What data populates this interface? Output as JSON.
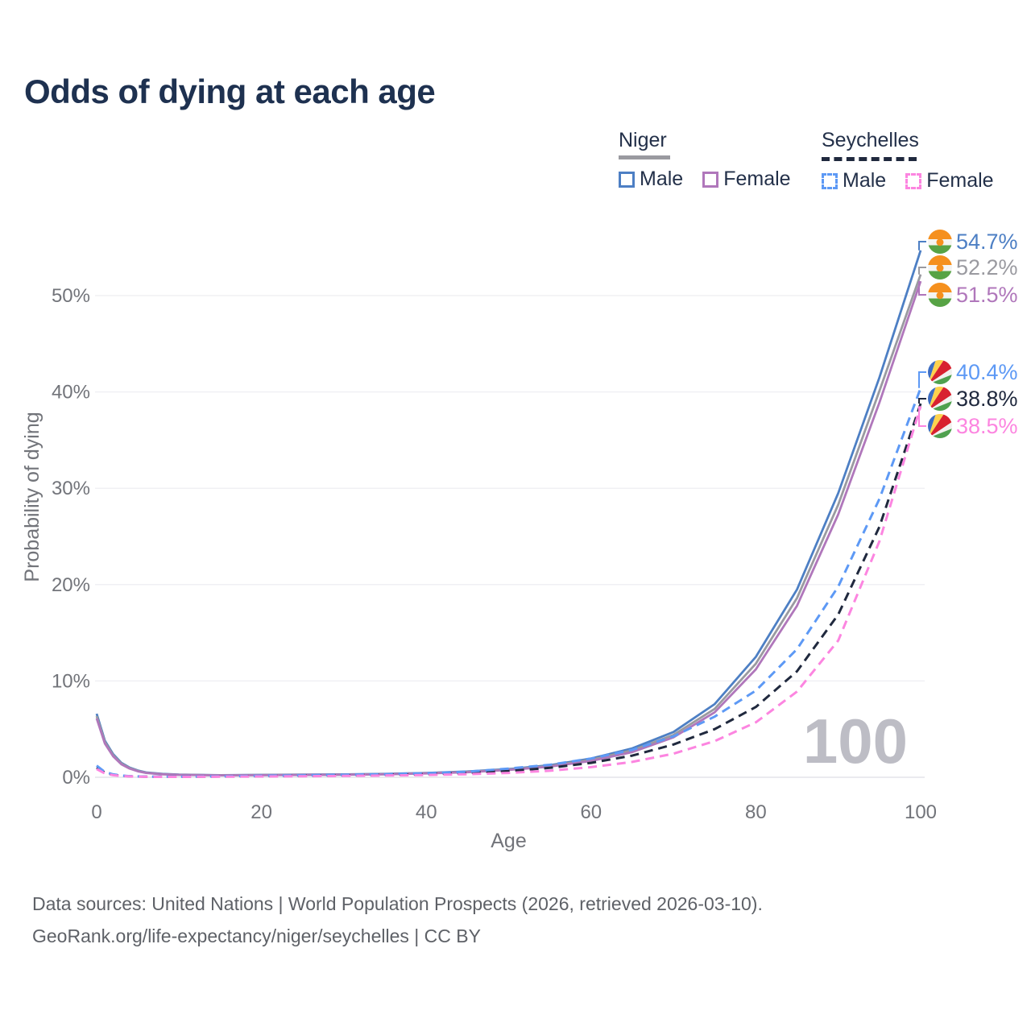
{
  "title": "Odds of dying at each age",
  "legend": {
    "niger": {
      "label": "Niger",
      "male": "Male",
      "female": "Female"
    },
    "seychelles": {
      "label": "Seychelles",
      "male": "Male",
      "female": "Female"
    }
  },
  "footer": {
    "line1": "Data sources: United Nations | World Population Prospects (2026, retrieved 2026-03-10).",
    "line2": "GeoRank.org/life-expectancy/niger/seychelles | CC BY"
  },
  "colors": {
    "title": "#1e3150",
    "axis_text": "#72747a",
    "grid": "#f0f0f4",
    "grid_zero": "#e4e4ea",
    "watermark": "#bdbdc5",
    "niger_male": "#4d7fc4",
    "niger_both": "#9a9aa0",
    "niger_female": "#b077bb",
    "sey_male": "#5d99f5",
    "sey_both": "#20293e",
    "sey_female": "#fc85e0"
  },
  "flag_colors": {
    "niger": [
      "#f5901e",
      "#f4f4f2",
      "#57a345"
    ],
    "seychelles": [
      "#3d6dc2",
      "#fdd24d",
      "#d8222f",
      "#f1f1ef",
      "#4fa14f"
    ]
  },
  "chart_data": {
    "type": "line",
    "title": "Odds of dying at each age",
    "xlabel": "Age",
    "ylabel": "Probability of dying",
    "xlim": [
      0,
      100
    ],
    "ylim_pct": [
      0,
      57
    ],
    "x_ticks": [
      0,
      20,
      40,
      60,
      80,
      100
    ],
    "y_ticks": [
      "0%",
      "10%",
      "20%",
      "30%",
      "40%",
      "50%"
    ],
    "grid": true,
    "legend_position": "top-right",
    "watermark": "100",
    "ages": [
      0,
      1,
      2,
      3,
      4,
      5,
      6,
      8,
      10,
      15,
      20,
      25,
      30,
      35,
      40,
      45,
      50,
      55,
      60,
      65,
      70,
      75,
      80,
      85,
      90,
      95,
      100
    ],
    "series": [
      {
        "name": "Niger Male",
        "country": "Niger",
        "sex": "Male",
        "style": "solid",
        "color": "#4d7fc4",
        "flag": "niger",
        "end_label": "54.7%",
        "values": [
          6.6,
          3.8,
          2.4,
          1.5,
          1.0,
          0.7,
          0.5,
          0.35,
          0.28,
          0.22,
          0.25,
          0.28,
          0.3,
          0.35,
          0.45,
          0.6,
          0.85,
          1.25,
          1.95,
          3.0,
          4.7,
          7.6,
          12.5,
          19.5,
          29.5,
          41.5,
          54.7
        ]
      },
      {
        "name": "Niger Both sexes",
        "country": "Niger",
        "sex": "Both",
        "style": "solid",
        "color": "#9a9aa0",
        "flag": "niger",
        "end_label": "52.2%",
        "values": [
          6.35,
          3.65,
          2.28,
          1.42,
          0.95,
          0.66,
          0.47,
          0.33,
          0.26,
          0.21,
          0.23,
          0.26,
          0.28,
          0.33,
          0.42,
          0.56,
          0.8,
          1.17,
          1.82,
          2.8,
          4.4,
          7.1,
          11.8,
          18.6,
          28.3,
          40.1,
          52.2
        ]
      },
      {
        "name": "Niger Female",
        "country": "Niger",
        "sex": "Female",
        "style": "solid",
        "color": "#b077bb",
        "flag": "niger",
        "end_label": "51.5%",
        "values": [
          6.1,
          3.5,
          2.17,
          1.35,
          0.9,
          0.62,
          0.45,
          0.31,
          0.25,
          0.2,
          0.22,
          0.24,
          0.27,
          0.31,
          0.4,
          0.53,
          0.76,
          1.1,
          1.7,
          2.62,
          4.15,
          6.75,
          11.2,
          17.8,
          27.3,
          38.9,
          51.5
        ]
      },
      {
        "name": "Seychelles Male",
        "country": "Seychelles",
        "sex": "Male",
        "style": "dashed",
        "color": "#5d99f5",
        "flag": "seychelles",
        "end_label": "40.4%",
        "values": [
          1.2,
          0.55,
          0.3,
          0.18,
          0.12,
          0.09,
          0.07,
          0.06,
          0.06,
          0.1,
          0.16,
          0.2,
          0.26,
          0.32,
          0.42,
          0.58,
          0.9,
          1.3,
          1.95,
          2.85,
          4.25,
          6.3,
          9.0,
          13.3,
          19.8,
          28.9,
          40.4
        ]
      },
      {
        "name": "Seychelles Both sexes",
        "country": "Seychelles",
        "sex": "Both",
        "style": "dashed",
        "color": "#20293e",
        "flag": "seychelles",
        "end_label": "38.8%",
        "values": [
          1.0,
          0.48,
          0.26,
          0.15,
          0.1,
          0.08,
          0.06,
          0.05,
          0.05,
          0.08,
          0.12,
          0.16,
          0.2,
          0.26,
          0.33,
          0.45,
          0.65,
          0.98,
          1.5,
          2.25,
          3.4,
          5.0,
          7.3,
          11.0,
          16.9,
          26.0,
          38.8
        ]
      },
      {
        "name": "Seychelles Female",
        "country": "Seychelles",
        "sex": "Female",
        "style": "dashed",
        "color": "#fc85e0",
        "flag": "seychelles",
        "end_label": "38.5%",
        "values": [
          0.85,
          0.4,
          0.22,
          0.13,
          0.09,
          0.07,
          0.05,
          0.045,
          0.04,
          0.06,
          0.08,
          0.11,
          0.14,
          0.18,
          0.23,
          0.32,
          0.45,
          0.68,
          1.05,
          1.6,
          2.45,
          3.75,
          5.7,
          8.9,
          14.2,
          24.5,
          38.5
        ]
      }
    ]
  }
}
